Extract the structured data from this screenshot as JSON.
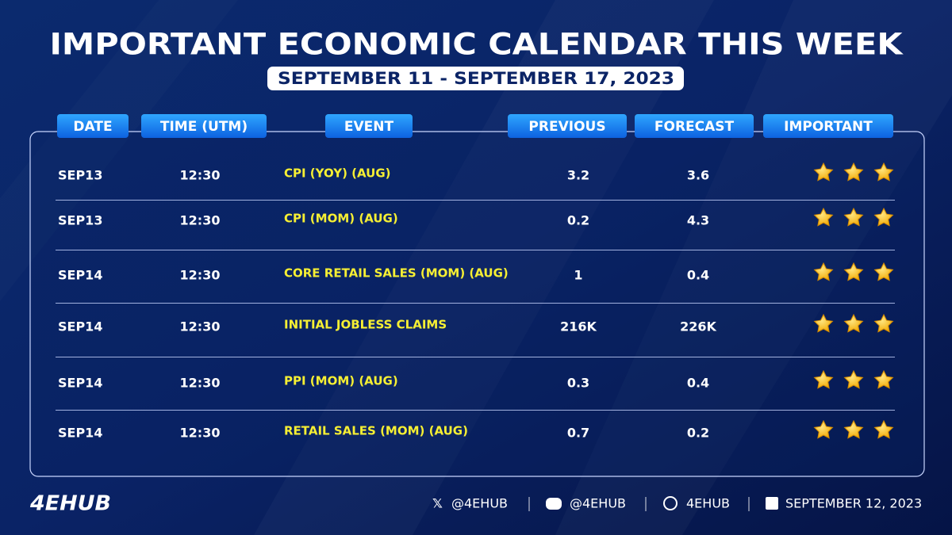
{
  "header": {
    "title": "IMPORTANT ECONOMIC CALENDAR THIS WEEK",
    "subtitle": "SEPTEMBER 11 - SEPTEMBER 17, 2023"
  },
  "table": {
    "columns": [
      "DATE",
      "TIME (UTM)",
      "EVENT",
      "PREVIOUS",
      "FORECAST",
      "IMPORTANT"
    ],
    "rows": [
      {
        "date": "SEP13",
        "time": "12:30",
        "event": "CPI (YOY) (AUG)",
        "previous": "3.2",
        "forecast": "3.6",
        "importance": 3
      },
      {
        "date": "SEP13",
        "time": "12:30",
        "event": "CPI (MOM) (AUG)",
        "previous": "0.2",
        "forecast": "4.3",
        "importance": 3
      },
      {
        "date": "SEP14",
        "time": "12:30",
        "event": "CORE RETAIL SALES (MOM) (AUG)",
        "previous": "1",
        "forecast": "0.4",
        "importance": 3
      },
      {
        "date": "SEP14",
        "time": "12:30",
        "event": "INITIAL JOBLESS CLAIMS",
        "previous": "216K",
        "forecast": "226K",
        "importance": 3
      },
      {
        "date": "SEP14",
        "time": "12:30",
        "event": "PPI (MOM) (AUG)",
        "previous": "0.3",
        "forecast": "0.4",
        "importance": 3
      },
      {
        "date": "SEP14",
        "time": "12:30",
        "event": "RETAIL SALES (MOM) (AUG)",
        "previous": "0.7",
        "forecast": "0.2",
        "importance": 3
      }
    ]
  },
  "footer": {
    "logo": "4EHUB",
    "x_handle": "@4EHUB",
    "discord_handle": "@4EHUB",
    "website": "4EHUB",
    "date": "SEPTEMBER 12, 2023"
  }
}
